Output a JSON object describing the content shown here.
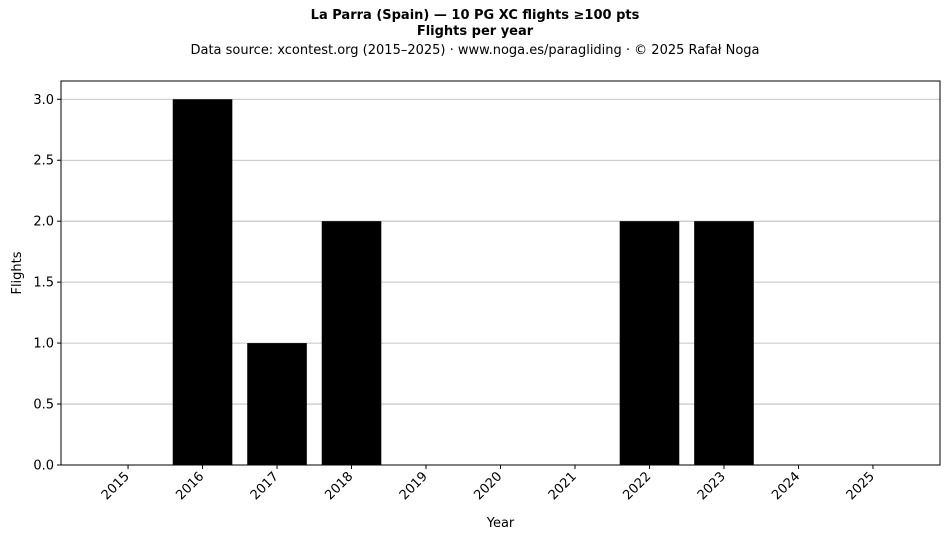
{
  "chart_data": {
    "type": "bar",
    "title": "La Parra (Spain)  —  10 PG XC flights ≥100 pts",
    "subtitle": "Flights per year",
    "source": "Data source: xcontest.org (2015–2025)  ·  www.noga.es/paragliding  ·  © 2025 Rafał Noga",
    "xlabel": "Year",
    "ylabel": "Flights",
    "categories": [
      "2015",
      "2016",
      "2017",
      "2018",
      "2019",
      "2020",
      "2021",
      "2022",
      "2023",
      "2024",
      "2025"
    ],
    "values": [
      0,
      3,
      1,
      2,
      0,
      0,
      0,
      2,
      2,
      0,
      0
    ],
    "ylim": [
      0,
      3.15
    ],
    "yticks": [
      "0.0",
      "0.5",
      "1.0",
      "1.5",
      "2.0",
      "2.5",
      "3.0"
    ],
    "grid": "y",
    "bar_color": "#000000",
    "grid_color": "#b0b0b0"
  }
}
